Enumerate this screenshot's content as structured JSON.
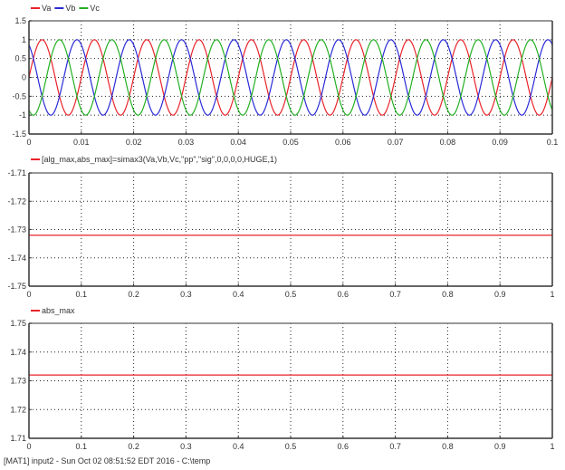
{
  "chart_data": [
    {
      "type": "line",
      "title": "",
      "legend": [
        "Va",
        "Vb",
        "Vc"
      ],
      "legend_position": "top-left",
      "series": [
        {
          "name": "Va",
          "color": "#e8232a",
          "function": "sin(2*pi*100*t)"
        },
        {
          "name": "Vb",
          "color": "#2a2ad6",
          "function": "sin(2*pi*100*t + 2*pi/3)"
        },
        {
          "name": "Vc",
          "color": "#22b022",
          "function": "sin(2*pi*100*t - 2*pi/3)"
        }
      ],
      "xlim": [
        0,
        0.1
      ],
      "ylim": [
        -1.5,
        1.5
      ],
      "xticks": [
        "0",
        "0.01",
        "0.02",
        "0.03",
        "0.04",
        "0.05",
        "0.06",
        "0.07",
        "0.08",
        "0.09",
        "0.1"
      ],
      "yticks": [
        "1.5",
        "1",
        "0.5",
        "0",
        "-0.5",
        "-1",
        "-1.5"
      ],
      "grid": true
    },
    {
      "type": "line",
      "title": "",
      "legend": [
        "[alg_max,abs_max]=simax3(Va,Vb,Vc,\"pp\",\"sig\",0,0,0,0,HUGE,1)"
      ],
      "series": [
        {
          "name": "alg_max",
          "color": "#e8232a",
          "x": [
            0,
            1
          ],
          "values": [
            -1.732,
            -1.732
          ]
        }
      ],
      "xlim": [
        0,
        1
      ],
      "ylim": [
        -1.75,
        -1.71
      ],
      "xticks": [
        "0",
        "0.1",
        "0.2",
        "0.3",
        "0.4",
        "0.5",
        "0.6",
        "0.7",
        "0.8",
        "0.9",
        "1"
      ],
      "yticks": [
        "-1.71",
        "-1.72",
        "-1.73",
        "-1.74",
        "-1.75"
      ],
      "grid": true
    },
    {
      "type": "line",
      "title": "",
      "legend": [
        "abs_max"
      ],
      "series": [
        {
          "name": "abs_max",
          "color": "#e8232a",
          "x": [
            0,
            1
          ],
          "values": [
            1.732,
            1.732
          ]
        }
      ],
      "xlim": [
        0,
        1
      ],
      "ylim": [
        1.71,
        1.75
      ],
      "xticks": [
        "0",
        "0.1",
        "0.2",
        "0.3",
        "0.4",
        "0.5",
        "0.6",
        "0.7",
        "0.8",
        "0.9",
        "1"
      ],
      "yticks": [
        "1.75",
        "1.74",
        "1.73",
        "1.72",
        "1.71"
      ],
      "grid": true
    }
  ],
  "footer": "[MAT1] input2 - Sun Oct 02 08:51:52 EDT 2016 - C:\\temp"
}
